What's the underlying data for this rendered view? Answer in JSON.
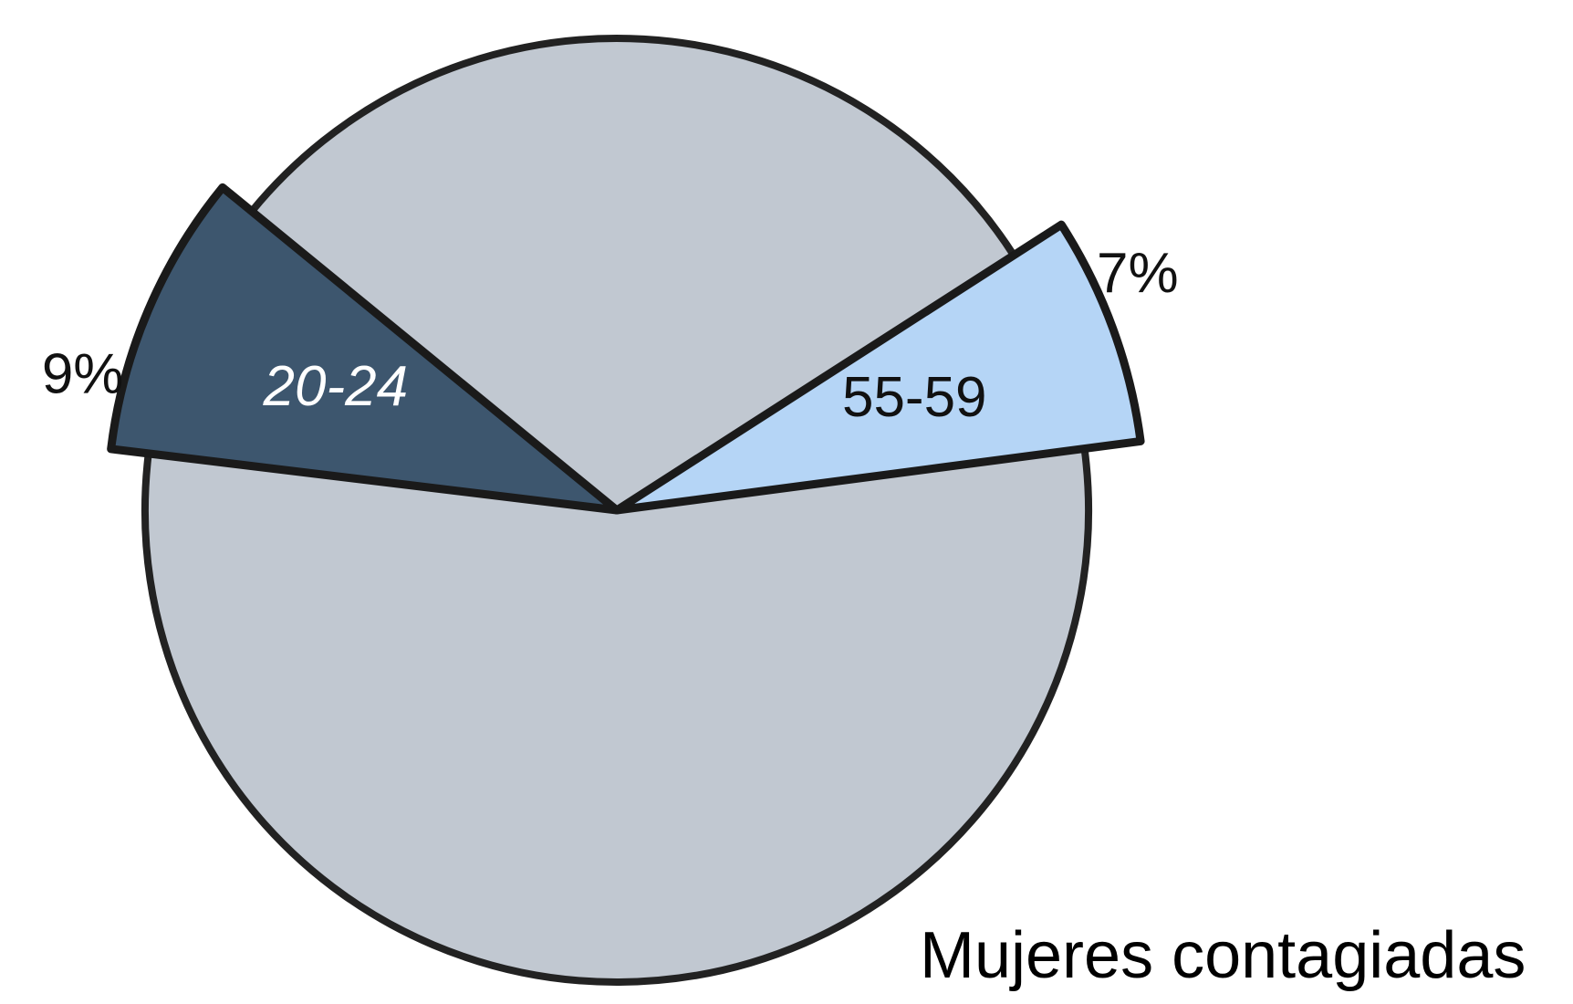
{
  "chart_data": {
    "type": "pie",
    "title": "Mujeres contagiadas",
    "categories": [
      "55-59",
      null,
      "20-24",
      null
    ],
    "values": [
      7,
      30,
      9,
      54
    ],
    "value_labels": [
      "7%",
      null,
      "9%",
      null
    ],
    "colors": [
      "#b5d5f6",
      "#c1c8d1",
      "#3d566e",
      "#c1c8d1"
    ],
    "start_angle": 7.5,
    "direction": "counterclockwise"
  }
}
